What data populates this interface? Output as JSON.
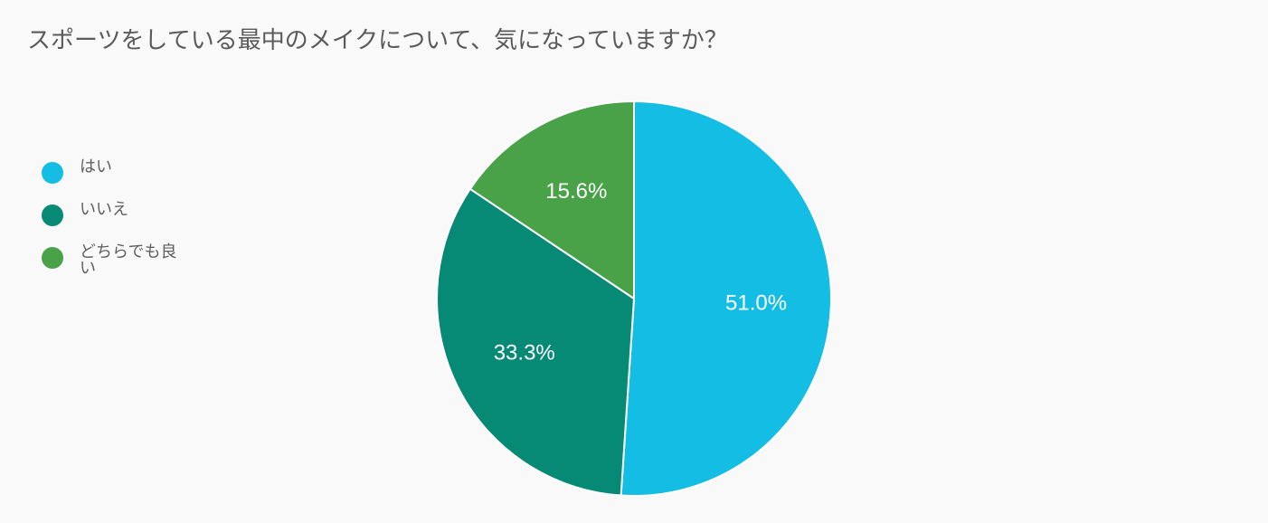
{
  "chart_data": {
    "type": "pie",
    "title": "スポーツをしている最中のメイクについて、気になっていますか？",
    "slices": [
      {
        "label": "はい",
        "value": 51.0,
        "display": "51.0%",
        "color": "#14bde4"
      },
      {
        "label": "いいえ",
        "value": 33.3,
        "display": "33.3%",
        "color": "#068a76"
      },
      {
        "label": "どちらでも良い",
        "value": 15.6,
        "display": "15.6%",
        "color": "#49a248"
      }
    ],
    "legend_position": "left"
  }
}
